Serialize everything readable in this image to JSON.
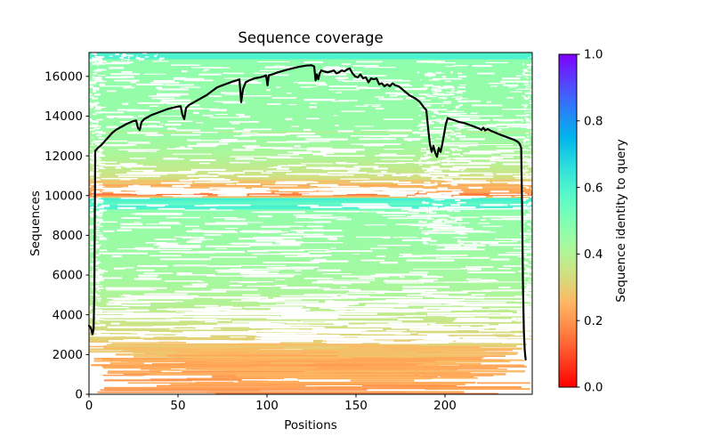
{
  "figure": {
    "title": "Sequence coverage",
    "xlabel": "Positions",
    "ylabel": "Sequences"
  },
  "colorbar": {
    "label": "Sequence identity to query",
    "tick_labels": [
      "0.0",
      "0.2",
      "0.4",
      "0.6",
      "0.8",
      "1.0"
    ],
    "tick_values": [
      0.0,
      0.2,
      0.4,
      0.6,
      0.8,
      1.0
    ],
    "colormap": "rainbow_r",
    "range": [
      0,
      1
    ]
  },
  "chart_data": {
    "type": "line+heatmap",
    "title": "Sequence coverage",
    "xlabel": "Positions",
    "ylabel": "Sequences",
    "xlim": [
      0,
      249
    ],
    "ylim": [
      0,
      17200
    ],
    "x_ticks": [
      0,
      50,
      100,
      150,
      200
    ],
    "y_ticks": [
      0,
      2000,
      4000,
      6000,
      8000,
      10000,
      12000,
      14000,
      16000
    ],
    "n_positions": 249,
    "n_sequences": 17200,
    "grid": false,
    "legend": "none",
    "coverage_line": {
      "color": "#000000",
      "width": 2.2,
      "points": [
        [
          0,
          3450
        ],
        [
          1,
          3350
        ],
        [
          2,
          3020
        ],
        [
          2.6,
          3300
        ],
        [
          3,
          5200
        ],
        [
          3.5,
          12250
        ],
        [
          5,
          12400
        ],
        [
          7,
          12550
        ],
        [
          9,
          12750
        ],
        [
          11,
          12950
        ],
        [
          13,
          13150
        ],
        [
          15,
          13300
        ],
        [
          17,
          13400
        ],
        [
          19,
          13500
        ],
        [
          21,
          13600
        ],
        [
          23,
          13680
        ],
        [
          25,
          13750
        ],
        [
          26.5,
          13780
        ],
        [
          27.5,
          13400
        ],
        [
          28.5,
          13300
        ],
        [
          29.5,
          13700
        ],
        [
          31,
          13850
        ],
        [
          33,
          13950
        ],
        [
          35,
          14050
        ],
        [
          38,
          14150
        ],
        [
          41,
          14250
        ],
        [
          44,
          14350
        ],
        [
          47,
          14420
        ],
        [
          50,
          14480
        ],
        [
          51.5,
          14500
        ],
        [
          52.5,
          14050
        ],
        [
          53.5,
          13850
        ],
        [
          54.5,
          14400
        ],
        [
          56,
          14550
        ],
        [
          58,
          14650
        ],
        [
          60,
          14750
        ],
        [
          63,
          14900
        ],
        [
          66,
          15050
        ],
        [
          69,
          15250
        ],
        [
          72,
          15450
        ],
        [
          75,
          15550
        ],
        [
          78,
          15650
        ],
        [
          81,
          15750
        ],
        [
          83,
          15800
        ],
        [
          84.5,
          15850
        ],
        [
          85.5,
          14700
        ],
        [
          86.5,
          15350
        ],
        [
          88,
          15700
        ],
        [
          90,
          15800
        ],
        [
          93,
          15900
        ],
        [
          96,
          15950
        ],
        [
          98,
          16000
        ],
        [
          99.5,
          16050
        ],
        [
          100.3,
          15550
        ],
        [
          101,
          16050
        ],
        [
          103,
          16100
        ],
        [
          106,
          16200
        ],
        [
          110,
          16300
        ],
        [
          114,
          16400
        ],
        [
          118,
          16480
        ],
        [
          122,
          16540
        ],
        [
          125,
          16560
        ],
        [
          126.5,
          16500
        ],
        [
          127.3,
          15800
        ],
        [
          128,
          16100
        ],
        [
          128.8,
          15850
        ],
        [
          129.6,
          16150
        ],
        [
          130.5,
          16300
        ],
        [
          132,
          16250
        ],
        [
          134,
          16200
        ],
        [
          136,
          16250
        ],
        [
          137.5,
          16300
        ],
        [
          139,
          16150
        ],
        [
          140.5,
          16200
        ],
        [
          142,
          16300
        ],
        [
          143.5,
          16250
        ],
        [
          145,
          16350
        ],
        [
          146.5,
          16400
        ],
        [
          148,
          16150
        ],
        [
          149.5,
          16000
        ],
        [
          151,
          15950
        ],
        [
          152.5,
          16100
        ],
        [
          154,
          15900
        ],
        [
          155.5,
          15950
        ],
        [
          157,
          15700
        ],
        [
          158.5,
          15900
        ],
        [
          160,
          15850
        ],
        [
          161.5,
          15900
        ],
        [
          163,
          15600
        ],
        [
          164.5,
          15650
        ],
        [
          166,
          15500
        ],
        [
          167.5,
          15600
        ],
        [
          169,
          15500
        ],
        [
          170.5,
          15650
        ],
        [
          172,
          15550
        ],
        [
          174,
          15500
        ],
        [
          176,
          15350
        ],
        [
          178,
          15200
        ],
        [
          180,
          15050
        ],
        [
          182,
          14950
        ],
        [
          184,
          14850
        ],
        [
          186,
          14700
        ],
        [
          188,
          14450
        ],
        [
          189.5,
          14300
        ],
        [
          190.5,
          13400
        ],
        [
          191.5,
          12600
        ],
        [
          192.5,
          12200
        ],
        [
          193.5,
          12500
        ],
        [
          194.5,
          12150
        ],
        [
          195.5,
          11950
        ],
        [
          196.5,
          12400
        ],
        [
          197.5,
          12200
        ],
        [
          198.5,
          12600
        ],
        [
          199.5,
          13100
        ],
        [
          200.5,
          13600
        ],
        [
          201.5,
          13900
        ],
        [
          203,
          13850
        ],
        [
          205,
          13800
        ],
        [
          208,
          13700
        ],
        [
          211,
          13650
        ],
        [
          214,
          13550
        ],
        [
          217,
          13450
        ],
        [
          219,
          13380
        ],
        [
          220.5,
          13300
        ],
        [
          221.5,
          13420
        ],
        [
          222.5,
          13280
        ],
        [
          224,
          13350
        ],
        [
          226,
          13250
        ],
        [
          228,
          13180
        ],
        [
          230,
          13100
        ],
        [
          233,
          13000
        ],
        [
          236,
          12900
        ],
        [
          239,
          12800
        ],
        [
          241,
          12700
        ],
        [
          242,
          12600
        ],
        [
          242.8,
          12400
        ],
        [
          243.3,
          9500
        ],
        [
          243.8,
          5500
        ],
        [
          244.3,
          3200
        ],
        [
          244.8,
          2200
        ],
        [
          245.3,
          1750
        ]
      ]
    },
    "identity_bands": [
      [
        17200,
        0.6
      ],
      [
        16880,
        0.6
      ],
      [
        16840,
        0.47
      ],
      [
        15500,
        0.46
      ],
      [
        13250,
        0.45
      ],
      [
        13180,
        0.37
      ],
      [
        13130,
        0.45
      ],
      [
        12800,
        0.44
      ],
      [
        12000,
        0.41
      ],
      [
        11150,
        0.36
      ],
      [
        10820,
        0.33
      ],
      [
        10700,
        0.26
      ],
      [
        10620,
        0.3
      ],
      [
        10520,
        0.22
      ],
      [
        10430,
        0.27
      ],
      [
        10380,
        0.24
      ],
      [
        10150,
        0.22
      ],
      [
        10060,
        0.14
      ],
      [
        9980,
        0.22
      ],
      [
        9890,
        0.3
      ],
      [
        9865,
        0.58
      ],
      [
        9840,
        0.62
      ],
      [
        9550,
        0.55
      ],
      [
        9500,
        0.61
      ],
      [
        9320,
        0.6
      ],
      [
        9280,
        0.48
      ],
      [
        9100,
        0.46
      ],
      [
        8200,
        0.45
      ],
      [
        7000,
        0.44
      ],
      [
        6000,
        0.43
      ],
      [
        5200,
        0.415
      ],
      [
        4500,
        0.395
      ],
      [
        3900,
        0.37
      ],
      [
        3400,
        0.345
      ],
      [
        3000,
        0.32
      ],
      [
        2700,
        0.3
      ],
      [
        2400,
        0.275
      ],
      [
        2000,
        0.255
      ],
      [
        1500,
        0.235
      ],
      [
        1000,
        0.225
      ],
      [
        500,
        0.215
      ],
      [
        0,
        0.205
      ]
    ],
    "msa_texture": {
      "seed": 42,
      "gap_color": "#ffffff",
      "bottom_white_below_seq": 2600,
      "bottom_segments": {
        "count": 260,
        "seq_pow": 0.6,
        "min_w": 30,
        "max_w": 250
      },
      "gap_layers": [
        {
          "name": "upper",
          "seq": [
            13200,
            16820
          ],
          "pos": [
            2,
            248
          ],
          "count": 240,
          "w": [
            4,
            36
          ]
        },
        {
          "name": "upper-mid",
          "seq": [
            9900,
            13200
          ],
          "pos": [
            2,
            248
          ],
          "count": 260,
          "w": [
            4,
            50
          ]
        },
        {
          "name": "lower-green",
          "seq": [
            5000,
            9650
          ],
          "pos": [
            2,
            248
          ],
          "count": 300,
          "w": [
            5,
            60
          ]
        },
        {
          "name": "transition",
          "seq": [
            2600,
            5000
          ],
          "pos": [
            0,
            249
          ],
          "count": 340,
          "w": [
            8,
            95
          ]
        },
        {
          "name": "left-edge",
          "seq": [
            3000,
            17150
          ],
          "pos": [
            0,
            6
          ],
          "count": 330,
          "w": [
            1,
            9
          ]
        },
        {
          "name": "right-edge",
          "seq": [
            1700,
            17150
          ],
          "pos": [
            243,
            249
          ],
          "count": 300,
          "w": [
            1,
            6
          ]
        },
        {
          "name": "dip-column",
          "seq": [
            7600,
            16300
          ],
          "pos": [
            184,
            209
          ],
          "count": 260,
          "w": [
            2,
            12
          ]
        },
        {
          "name": "above-cyan",
          "seq": [
            10150,
            10430
          ],
          "pos": [
            0,
            170
          ],
          "count": 80,
          "w": [
            12,
            70
          ]
        },
        {
          "name": "top-speckle",
          "seq": [
            16840,
            17190
          ],
          "pos": [
            0,
            40
          ],
          "count": 30,
          "w": [
            1,
            6
          ]
        }
      ]
    }
  }
}
